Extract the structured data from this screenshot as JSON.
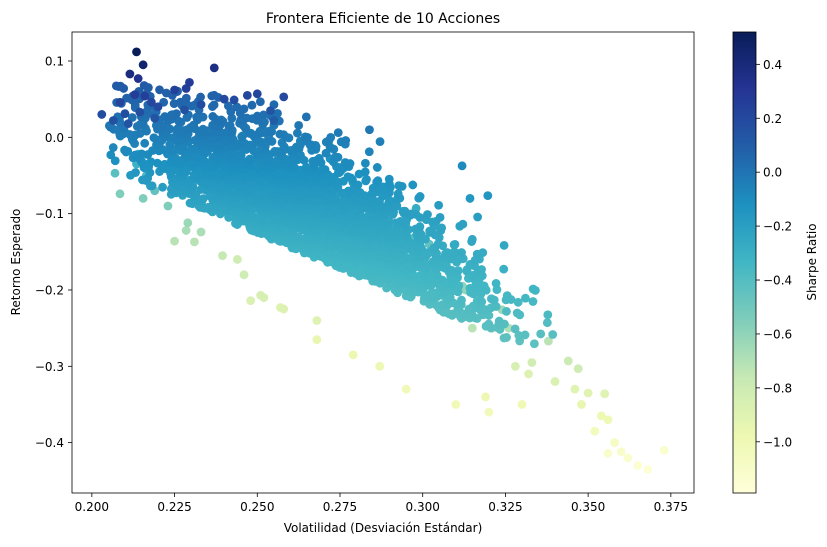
{
  "chart_data": {
    "type": "scatter",
    "title": "Frontera Eficiente de 10 Acciones",
    "xlabel": "Volatilidad (Desviación Estándar)",
    "ylabel": "Retorno Esperado",
    "xlim": [
      0.194,
      0.382
    ],
    "ylim": [
      -0.466,
      0.138
    ],
    "xticks": [
      0.2,
      0.225,
      0.25,
      0.275,
      0.3,
      0.325,
      0.35,
      0.375
    ],
    "xtick_labels": [
      "0.200",
      "0.225",
      "0.250",
      "0.275",
      "0.300",
      "0.325",
      "0.350",
      "0.375"
    ],
    "yticks": [
      0.1,
      0.0,
      -0.1,
      -0.2,
      -0.3,
      -0.4
    ],
    "ytick_labels": [
      "0.1",
      "0.0",
      "−0.1",
      "−0.2",
      "−0.3",
      "−0.4"
    ],
    "grid": false,
    "colormap": "YlGnBu",
    "colormap_stops": [
      "#ffffd9",
      "#edf8b1",
      "#c7e9b4",
      "#7fcdbb",
      "#41b6c4",
      "#1d91c0",
      "#225ea8",
      "#253494",
      "#081d58"
    ],
    "colorbar": {
      "label": "Sharpe Ratio",
      "range": [
        -1.19,
        0.52
      ],
      "ticks": [
        0.4,
        0.2,
        0.0,
        -0.2,
        -0.4,
        -0.6,
        -0.8,
        -1.0
      ],
      "tick_labels": [
        "0.4",
        "0.2",
        "0.0",
        "−0.2",
        "−0.4",
        "−0.6",
        "−0.8",
        "−1.0"
      ]
    },
    "points": [
      [
        0.2135,
        0.112,
        0.52
      ],
      [
        0.2155,
        0.095,
        0.45
      ],
      [
        0.237,
        0.091,
        0.36
      ],
      [
        0.2115,
        0.083,
        0.38
      ],
      [
        0.214,
        0.077,
        0.33
      ],
      [
        0.2295,
        0.072,
        0.27
      ],
      [
        0.2285,
        0.064,
        0.25
      ],
      [
        0.225,
        0.062,
        0.24
      ],
      [
        0.25,
        0.057,
        0.22
      ],
      [
        0.247,
        0.055,
        0.21
      ],
      [
        0.258,
        0.053,
        0.2
      ],
      [
        0.213,
        0.056,
        0.26
      ],
      [
        0.216,
        0.054,
        0.25
      ],
      [
        0.2085,
        0.046,
        0.22
      ],
      [
        0.218,
        0.046,
        0.21
      ],
      [
        0.203,
        0.03,
        0.18
      ],
      [
        0.21,
        0.031,
        0.18
      ],
      [
        0.2065,
        0.022,
        0.16
      ],
      [
        0.211,
        0.018,
        0.15
      ],
      [
        0.24,
        0.05,
        0.2
      ],
      [
        0.243,
        0.049,
        0.19
      ],
      [
        0.233,
        0.043,
        0.18
      ],
      [
        0.22,
        0.04,
        0.19
      ],
      [
        0.254,
        0.035,
        0.15
      ],
      [
        0.255,
        0.022,
        0.11
      ],
      [
        0.228,
        0.036,
        0.16
      ],
      [
        0.219,
        0.025,
        0.15
      ],
      [
        0.2145,
        0.033,
        0.17
      ],
      [
        0.215,
        -0.03,
        -0.3
      ],
      [
        0.2135,
        -0.035,
        -0.31
      ],
      [
        0.214,
        -0.022,
        -0.26
      ],
      [
        0.207,
        -0.047,
        -0.42
      ],
      [
        0.2085,
        -0.074,
        -0.55
      ],
      [
        0.2155,
        -0.08,
        -0.55
      ],
      [
        0.225,
        -0.136,
        -0.72
      ],
      [
        0.231,
        -0.137,
        -0.72
      ],
      [
        0.244,
        -0.16,
        -0.8
      ],
      [
        0.2285,
        -0.122,
        -0.67
      ],
      [
        0.248,
        -0.214,
        -0.87
      ],
      [
        0.251,
        -0.207,
        -0.85
      ],
      [
        0.258,
        -0.225,
        -0.88
      ],
      [
        0.268,
        -0.24,
        -0.89
      ],
      [
        0.279,
        -0.09,
        -0.32
      ],
      [
        0.287,
        -0.07,
        -0.22
      ],
      [
        0.268,
        -0.03,
        -0.13
      ],
      [
        0.263,
        -0.005,
        -0.06
      ],
      [
        0.272,
        -0.028,
        -0.13
      ],
      [
        0.292,
        -0.088,
        -0.29
      ],
      [
        0.298,
        -0.093,
        -0.28
      ],
      [
        0.294,
        -0.097,
        -0.3
      ],
      [
        0.2975,
        -0.131,
        -0.44
      ],
      [
        0.302,
        -0.14,
        -0.45
      ],
      [
        0.306,
        -0.16,
        -0.52
      ],
      [
        0.307,
        -0.165,
        -0.53
      ],
      [
        0.31,
        -0.178,
        -0.57
      ],
      [
        0.312,
        -0.195,
        -0.6
      ],
      [
        0.313,
        -0.2,
        -0.61
      ],
      [
        0.318,
        -0.23,
        -0.66
      ],
      [
        0.315,
        -0.25,
        -0.72
      ],
      [
        0.321,
        -0.25,
        -0.7
      ],
      [
        0.326,
        -0.25,
        -0.69
      ],
      [
        0.324,
        -0.226,
        -0.63
      ],
      [
        0.338,
        -0.267,
        -0.72
      ],
      [
        0.333,
        -0.295,
        -0.82
      ],
      [
        0.328,
        -0.3,
        -0.85
      ],
      [
        0.332,
        -0.31,
        -0.88
      ],
      [
        0.344,
        -0.293,
        -0.79
      ],
      [
        0.347,
        -0.303,
        -0.8
      ],
      [
        0.34,
        -0.32,
        -0.87
      ],
      [
        0.346,
        -0.33,
        -0.9
      ],
      [
        0.35,
        -0.335,
        -0.91
      ],
      [
        0.355,
        -0.336,
        -0.9
      ],
      [
        0.348,
        -0.35,
        -0.95
      ],
      [
        0.354,
        -0.365,
        -0.98
      ],
      [
        0.356,
        -0.37,
        -1.0
      ],
      [
        0.352,
        -0.385,
        -1.04
      ],
      [
        0.358,
        -0.4,
        -1.08
      ],
      [
        0.36,
        -0.412,
        -1.11
      ],
      [
        0.362,
        -0.42,
        -1.13
      ],
      [
        0.365,
        -0.43,
        -1.15
      ],
      [
        0.368,
        -0.435,
        -1.17
      ],
      [
        0.373,
        -0.41,
        -1.13
      ],
      [
        0.356,
        -0.414,
        -1.12
      ],
      [
        0.33,
        -0.35,
        -1.0
      ],
      [
        0.31,
        -0.35,
        -1.02
      ],
      [
        0.319,
        -0.34,
        -0.99
      ],
      [
        0.32,
        -0.36,
        -1.03
      ],
      [
        0.295,
        -0.33,
        -1.01
      ],
      [
        0.287,
        -0.3,
        -0.98
      ],
      [
        0.279,
        -0.285,
        -0.97
      ],
      [
        0.268,
        -0.265,
        -0.95
      ],
      [
        0.257,
        -0.223,
        -0.89
      ],
      [
        0.252,
        -0.21,
        -0.85
      ],
      [
        0.246,
        -0.18,
        -0.8
      ],
      [
        0.2395,
        -0.155,
        -0.76
      ],
      [
        0.233,
        -0.124,
        -0.68
      ],
      [
        0.229,
        -0.112,
        -0.63
      ],
      [
        0.223,
        -0.09,
        -0.55
      ],
      [
        0.219,
        -0.07,
        -0.45
      ],
      [
        0.2165,
        -0.05,
        -0.35
      ],
      [
        0.217,
        -0.038,
        -0.29
      ]
    ],
    "cloud": {
      "count": 3600,
      "seed": 20231,
      "vol_mean": 0.266,
      "vol_sd": 0.027,
      "ret_slope": -2.15,
      "ret_intercept": 0.455,
      "ret_resid_sd": 0.052
    }
  }
}
